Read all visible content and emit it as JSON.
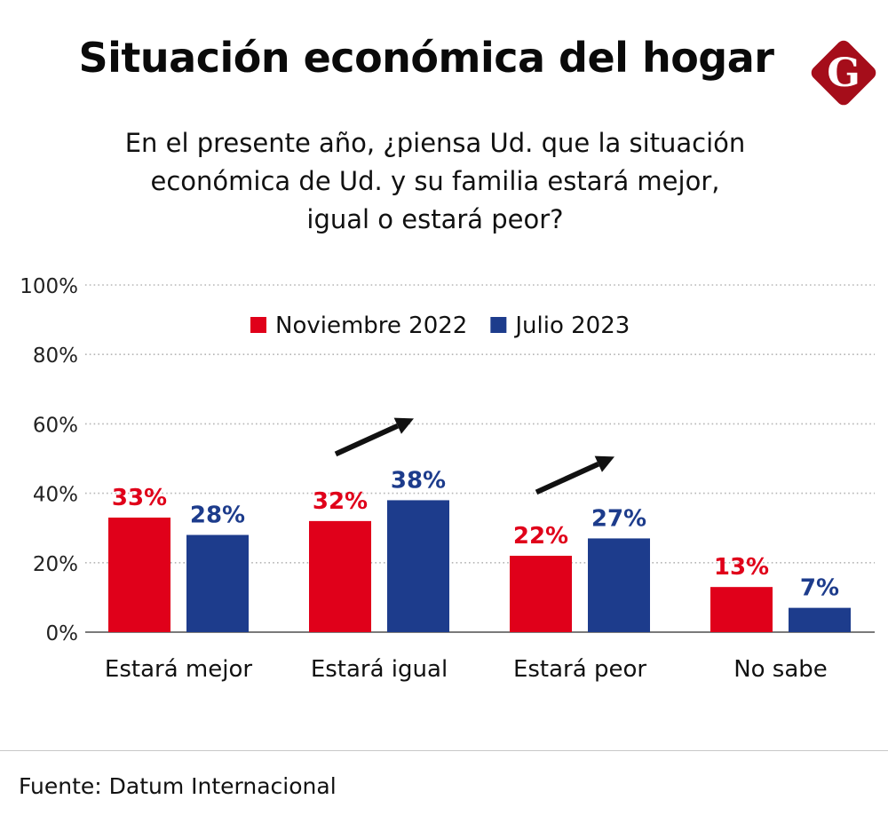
{
  "header": {
    "title": "Situación económica del hogar",
    "subtitle_lines": [
      "En el presente año, ¿piensa Ud. que la situación",
      "económica de Ud. y  su familia estará mejor,",
      "igual o estará peor?"
    ],
    "logo": {
      "icon": "g-diamond-logo-icon",
      "letter": "G",
      "color": "#a50d1a"
    }
  },
  "chart_data": {
    "type": "bar",
    "title": "Situación económica del hogar",
    "subtitle": "En el presente año, ¿piensa Ud. que la situación económica de Ud. y su familia estará mejor, igual o estará peor?",
    "xlabel": "",
    "ylabel": "",
    "ylim": [
      0,
      100
    ],
    "yticks": [
      0,
      20,
      40,
      60,
      80,
      100
    ],
    "ytick_labels": [
      "0%",
      "20%",
      "40%",
      "60%",
      "80%",
      "100%"
    ],
    "grid": true,
    "legend_position": "top-center",
    "categories": [
      "Estará mejor",
      "Estará igual",
      "Estará peor",
      "No sabe"
    ],
    "series": [
      {
        "name": "Noviembre 2022",
        "color": "#e0001a",
        "values": [
          33,
          32,
          22,
          13
        ],
        "labels": [
          "33%",
          "32%",
          "22%",
          "13%"
        ]
      },
      {
        "name": "Julio 2023",
        "color": "#1d3c8c",
        "values": [
          28,
          38,
          27,
          7
        ],
        "labels": [
          "28%",
          "38%",
          "27%",
          "7%"
        ]
      }
    ],
    "annotations": [
      {
        "type": "up-arrow",
        "category": "Estará igual",
        "meaning": "increase"
      },
      {
        "type": "up-arrow",
        "category": "Estará peor",
        "meaning": "increase"
      }
    ]
  },
  "footer": {
    "source": "Fuente: Datum Internacional"
  }
}
